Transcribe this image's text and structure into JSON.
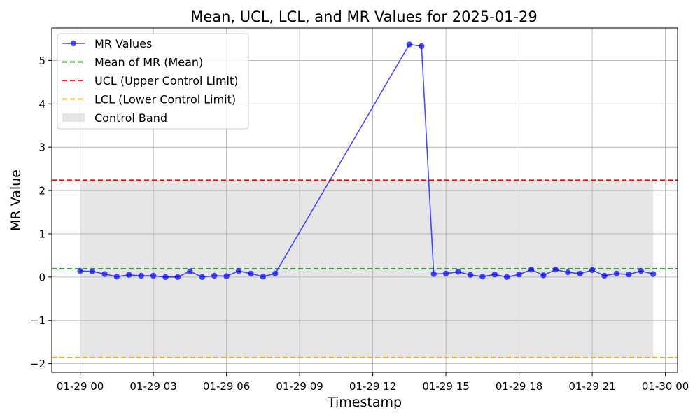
{
  "chart_data": {
    "type": "line",
    "title": "Mean, UCL, LCL, and MR Values for 2025-01-29",
    "xlabel": "Timestamp",
    "ylabel": "MR Value",
    "xlim": [
      "2025-01-28T22:50",
      "2025-01-30T00:30"
    ],
    "ylim": [
      -2.2,
      5.75
    ],
    "x_ticks": [
      {
        "t": "2025-01-29T00:00",
        "label": "01-29 00"
      },
      {
        "t": "2025-01-29T03:00",
        "label": "01-29 03"
      },
      {
        "t": "2025-01-29T06:00",
        "label": "01-29 06"
      },
      {
        "t": "2025-01-29T09:00",
        "label": "01-29 09"
      },
      {
        "t": "2025-01-29T12:00",
        "label": "01-29 12"
      },
      {
        "t": "2025-01-29T15:00",
        "label": "01-29 15"
      },
      {
        "t": "2025-01-29T18:00",
        "label": "01-29 18"
      },
      {
        "t": "2025-01-29T21:00",
        "label": "01-29 21"
      },
      {
        "t": "2025-01-30T00:00",
        "label": "01-30 00"
      }
    ],
    "y_ticks": [
      {
        "v": -2,
        "label": "−2"
      },
      {
        "v": -1,
        "label": "−1"
      },
      {
        "v": 0,
        "label": "0"
      },
      {
        "v": 1,
        "label": "1"
      },
      {
        "v": 2,
        "label": "2"
      },
      {
        "v": 3,
        "label": "3"
      },
      {
        "v": 4,
        "label": "4"
      },
      {
        "v": 5,
        "label": "5"
      }
    ],
    "grid": true,
    "legend_position": "top-left",
    "series": [
      {
        "name": "MR Values",
        "color": "#0000ff",
        "marker": "circle",
        "points": [
          {
            "x": "2025-01-29T00:00",
            "y": 0.14
          },
          {
            "x": "2025-01-29T00:30",
            "y": 0.13
          },
          {
            "x": "2025-01-29T01:00",
            "y": 0.07
          },
          {
            "x": "2025-01-29T01:30",
            "y": 0.01
          },
          {
            "x": "2025-01-29T02:00",
            "y": 0.05
          },
          {
            "x": "2025-01-29T02:30",
            "y": 0.03
          },
          {
            "x": "2025-01-29T03:00",
            "y": 0.03
          },
          {
            "x": "2025-01-29T03:30",
            "y": 0.0
          },
          {
            "x": "2025-01-29T04:00",
            "y": 0.0
          },
          {
            "x": "2025-01-29T04:30",
            "y": 0.13
          },
          {
            "x": "2025-01-29T05:00",
            "y": 0.0
          },
          {
            "x": "2025-01-29T05:30",
            "y": 0.03
          },
          {
            "x": "2025-01-29T06:00",
            "y": 0.02
          },
          {
            "x": "2025-01-29T06:30",
            "y": 0.14
          },
          {
            "x": "2025-01-29T07:00",
            "y": 0.08
          },
          {
            "x": "2025-01-29T07:30",
            "y": 0.01
          },
          {
            "x": "2025-01-29T08:00",
            "y": 0.08
          },
          {
            "x": "2025-01-29T13:30",
            "y": 5.37
          },
          {
            "x": "2025-01-29T14:00",
            "y": 5.33
          },
          {
            "x": "2025-01-29T14:30",
            "y": 0.07
          },
          {
            "x": "2025-01-29T15:00",
            "y": 0.08
          },
          {
            "x": "2025-01-29T15:30",
            "y": 0.12
          },
          {
            "x": "2025-01-29T16:00",
            "y": 0.05
          },
          {
            "x": "2025-01-29T16:30",
            "y": 0.01
          },
          {
            "x": "2025-01-29T17:00",
            "y": 0.06
          },
          {
            "x": "2025-01-29T17:30",
            "y": 0.0
          },
          {
            "x": "2025-01-29T18:00",
            "y": 0.06
          },
          {
            "x": "2025-01-29T18:30",
            "y": 0.17
          },
          {
            "x": "2025-01-29T19:00",
            "y": 0.04
          },
          {
            "x": "2025-01-29T19:30",
            "y": 0.17
          },
          {
            "x": "2025-01-29T20:00",
            "y": 0.11
          },
          {
            "x": "2025-01-29T20:30",
            "y": 0.08
          },
          {
            "x": "2025-01-29T21:00",
            "y": 0.16
          },
          {
            "x": "2025-01-29T21:30",
            "y": 0.03
          },
          {
            "x": "2025-01-29T22:00",
            "y": 0.08
          },
          {
            "x": "2025-01-29T22:30",
            "y": 0.06
          },
          {
            "x": "2025-01-29T23:00",
            "y": 0.14
          },
          {
            "x": "2025-01-29T23:30",
            "y": 0.07
          }
        ]
      }
    ],
    "reference_lines": [
      {
        "name": "Mean of MR (Mean)",
        "value": 0.19,
        "color": "#008000",
        "style": "dashed"
      },
      {
        "name": "UCL (Upper Control Limit)",
        "value": 2.24,
        "color": "#ff0000",
        "style": "dashed"
      },
      {
        "name": "LCL (Lower Control Limit)",
        "value": -1.86,
        "color": "#ffa500",
        "style": "dashed"
      }
    ],
    "band": {
      "name": "Control Band",
      "from": -1.86,
      "to": 2.24,
      "x_start": "2025-01-29T00:00",
      "x_end": "2025-01-29T23:30",
      "color": "#d3d3d3"
    }
  }
}
